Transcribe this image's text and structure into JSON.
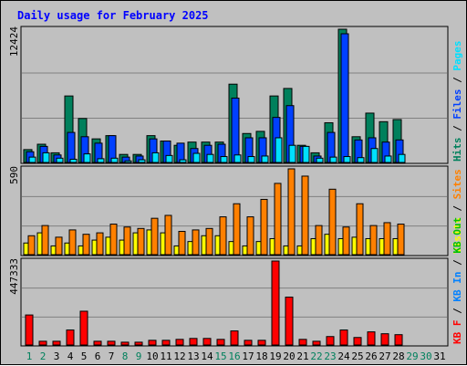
{
  "title": "Daily usage for February 2025",
  "chart_data": {
    "type": "bar",
    "title": "Daily usage for February 2025",
    "categories": [
      "1",
      "2",
      "3",
      "4",
      "5",
      "6",
      "7",
      "8",
      "9",
      "10",
      "11",
      "12",
      "13",
      "14",
      "15",
      "16",
      "17",
      "18",
      "19",
      "20",
      "21",
      "22",
      "23",
      "24",
      "25",
      "26",
      "27",
      "28",
      "29",
      "30",
      "31"
    ],
    "weekend_days": [
      "1",
      "2",
      "8",
      "9",
      "15",
      "16",
      "22",
      "23",
      "29",
      "30"
    ],
    "colors": {
      "hits": "#00805c",
      "files": "#0040ff",
      "pages": "#00e0ff",
      "visits": "#ffff00",
      "sites": "#ff8000",
      "kbin": "#0080ff",
      "kbout": "#00c000",
      "kbf": "#ff0000",
      "weekday_label": "#000000",
      "weekend_label": "#00805c",
      "title": "#0000ff"
    },
    "panels": [
      {
        "name": "hits-files-pages",
        "y_max_label": "12424",
        "ylim": [
          0,
          12424
        ],
        "legend": [
          {
            "label": "Hits",
            "color": "#00805c"
          },
          {
            "label": "Files",
            "color": "#0040ff"
          },
          {
            "label": "Pages",
            "color": "#00e0ff"
          }
        ],
        "series": [
          {
            "name": "Hits",
            "values": [
              1200,
              1700,
              900,
              6200,
              4100,
              2200,
              2500,
              750,
              750,
              2500,
              2000,
              1600,
              1900,
              1900,
              1900,
              7300,
              2700,
              2900,
              6200,
              6900,
              1600,
              900,
              3700,
              12424,
              2400,
              4600,
              3800,
              4000,
              0,
              0,
              0
            ]
          },
          {
            "name": "Files",
            "values": [
              1000,
              1500,
              700,
              2800,
              2400,
              1800,
              2500,
              500,
              600,
              2200,
              2000,
              1800,
              1300,
              1600,
              1700,
              6000,
              2300,
              2300,
              4200,
              5300,
              1500,
              600,
              2800,
              12000,
              2100,
              2300,
              1900,
              2100,
              0,
              0,
              0
            ]
          },
          {
            "name": "Pages",
            "values": [
              500,
              900,
              400,
              300,
              800,
              350,
              400,
              150,
              250,
              900,
              650,
              250,
              850,
              750,
              550,
              700,
              550,
              600,
              2300,
              1600,
              1500,
              400,
              500,
              550,
              450,
              1300,
              600,
              750,
              0,
              0,
              0
            ]
          }
        ]
      },
      {
        "name": "visits-sites",
        "y_max_label": "590",
        "ylim": [
          0,
          590
        ],
        "legend": [
          {
            "label": "Visits",
            "color": "#ffff00"
          },
          {
            "label": "Sites",
            "color": "#ff8000"
          }
        ],
        "series": [
          {
            "name": "Visits",
            "values": [
              80,
              150,
              60,
              80,
              60,
              100,
              120,
              100,
              150,
              170,
              150,
              60,
              90,
              130,
              130,
              90,
              60,
              90,
              110,
              60,
              60,
              110,
              140,
              110,
              120,
              110,
              110,
              110,
              0,
              0,
              0
            ]
          },
          {
            "name": "Sites",
            "values": [
              130,
              200,
              120,
              170,
              140,
              150,
              210,
              190,
              180,
              250,
              270,
              160,
              170,
              180,
              260,
              350,
              260,
              380,
              490,
              590,
              540,
              200,
              450,
              190,
              350,
              200,
              220,
              210,
              0,
              0,
              0
            ]
          }
        ]
      },
      {
        "name": "kb",
        "y_max_label": "447333",
        "ylim": [
          0,
          447333
        ],
        "legend": [
          {
            "label": "KB F",
            "color": "#ff0000"
          },
          {
            "label": "KB In",
            "color": "#0080ff"
          },
          {
            "label": "KB Out",
            "color": "#00c000"
          }
        ],
        "series": [
          {
            "name": "KB F",
            "values": [
              160000,
              20000,
              20000,
              80000,
              180000,
              20000,
              20000,
              15000,
              15000,
              25000,
              25000,
              30000,
              35000,
              35000,
              30000,
              75000,
              25000,
              25000,
              447333,
              255000,
              30000,
              20000,
              45000,
              80000,
              40000,
              70000,
              60000,
              55000,
              0,
              0,
              0
            ]
          },
          {
            "name": "KB In",
            "values": [
              0,
              0,
              0,
              0,
              0,
              0,
              0,
              0,
              0,
              0,
              0,
              0,
              0,
              0,
              0,
              0,
              0,
              0,
              0,
              0,
              0,
              0,
              0,
              0,
              0,
              0,
              0,
              0,
              0,
              0,
              0
            ]
          },
          {
            "name": "KB Out",
            "values": [
              0,
              0,
              0,
              0,
              0,
              0,
              0,
              0,
              0,
              0,
              0,
              0,
              0,
              0,
              0,
              0,
              0,
              0,
              0,
              0,
              0,
              0,
              0,
              0,
              0,
              0,
              0,
              0,
              0,
              0,
              0
            ]
          }
        ]
      }
    ]
  }
}
